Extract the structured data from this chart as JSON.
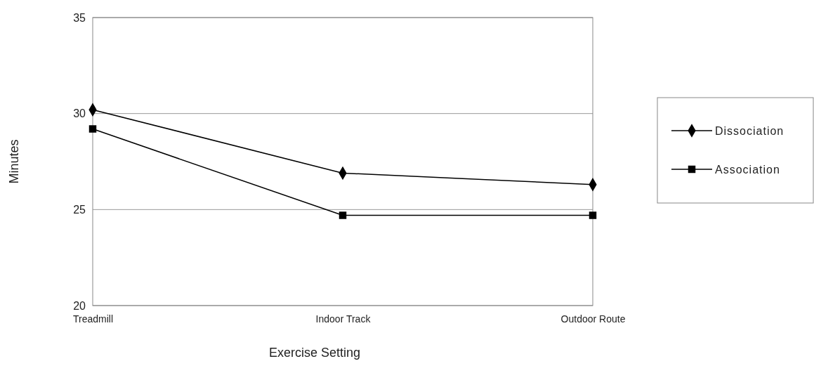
{
  "chart_data": {
    "type": "line",
    "xlabel": "Exercise Setting",
    "ylabel": "Minutes",
    "categories": [
      "Treadmill",
      "Indoor Track",
      "Outdoor Route"
    ],
    "series": [
      {
        "name": "Dissociation",
        "color": "#000000",
        "marker": "diamond",
        "values": [
          30.2,
          26.9,
          26.3
        ]
      },
      {
        "name": "Association",
        "color": "#000000",
        "marker": "square",
        "values": [
          29.2,
          24.7,
          24.7
        ]
      }
    ],
    "ylim": [
      20,
      35
    ],
    "yticks": [
      20,
      25,
      30,
      35
    ],
    "grid": "y",
    "legend": "right",
    "line_style": "solid"
  }
}
